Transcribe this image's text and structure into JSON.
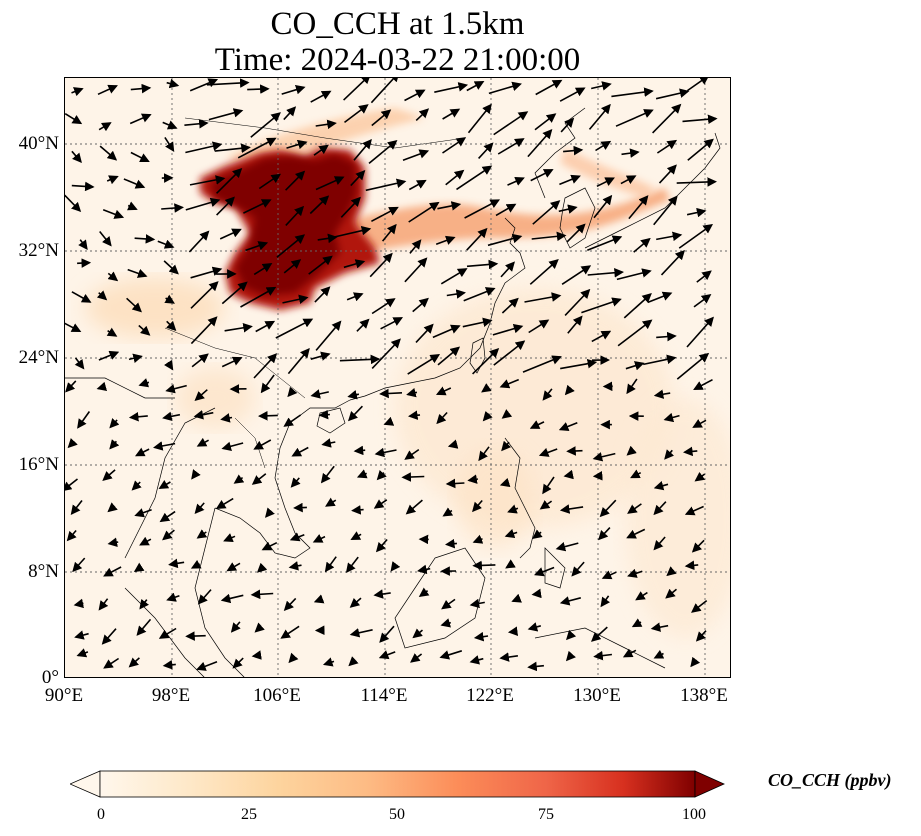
{
  "title": {
    "line1": "CO_CCH at 1.5km",
    "line2": "Time: 2024-03-22 21:00:00"
  },
  "map": {
    "extent": {
      "lon": [
        90,
        140
      ],
      "lat": [
        0,
        45
      ]
    },
    "lat_ticks": [
      "0°",
      "8°N",
      "16°N",
      "24°N",
      "32°N",
      "40°N"
    ],
    "lon_ticks": [
      "90°E",
      "98°E",
      "106°E",
      "114°E",
      "122°E",
      "130°E",
      "138°E"
    ],
    "gridlines": true,
    "overlay": "wind vectors",
    "colors": {
      "background": "#fef4e8",
      "plume_high": "#7f0000",
      "plume_mid": "#d7301f",
      "plume_low": "#fdbb84"
    }
  },
  "colorbar": {
    "label": "CO_CCH (ppbv)",
    "ticks": [
      "0",
      "25",
      "50",
      "75",
      "100"
    ],
    "range": [
      0,
      100
    ],
    "colormap": "OrRd",
    "extend": "both"
  }
}
